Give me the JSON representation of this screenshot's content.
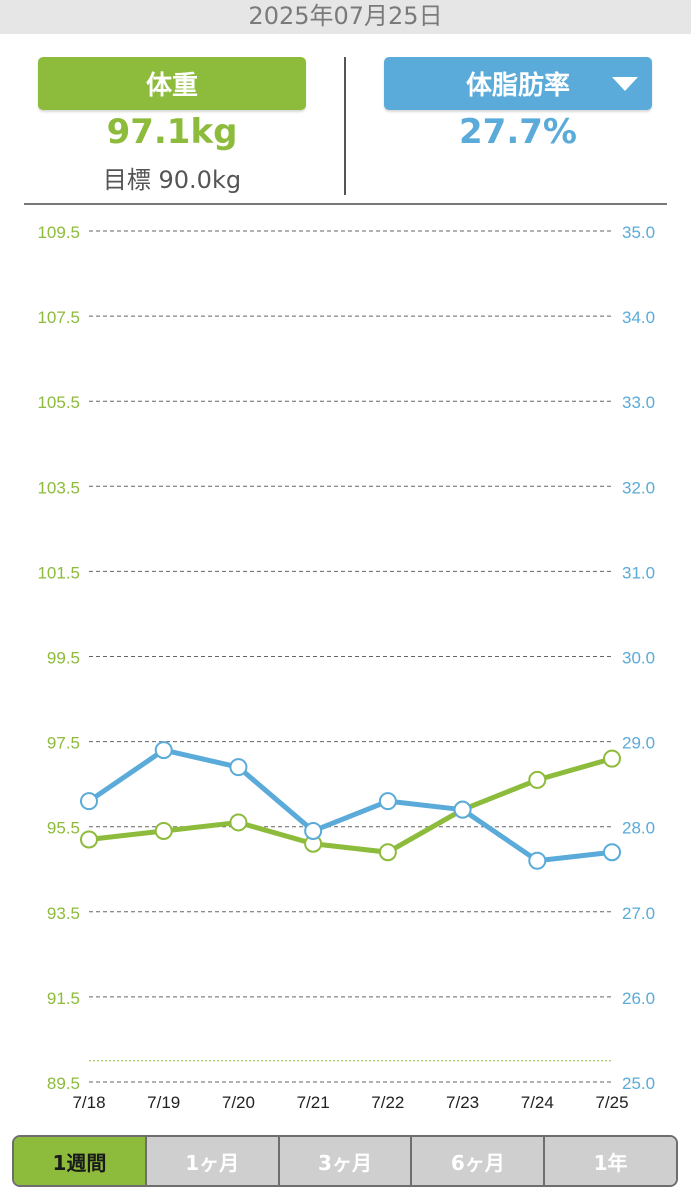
{
  "header": {
    "date": "2025年07月25日"
  },
  "weight": {
    "label": "体重",
    "value": "97.1kg",
    "goal": "目標 90.0kg"
  },
  "body_fat": {
    "label": "体脂肪率",
    "value": "27.7%"
  },
  "tabs": [
    {
      "label": "1週間",
      "active": true
    },
    {
      "label": "1ヶ月",
      "active": false
    },
    {
      "label": "3ヶ月",
      "active": false
    },
    {
      "label": "6ヶ月",
      "active": false
    },
    {
      "label": "1年",
      "active": false
    }
  ],
  "colors": {
    "weight": "#8dbb3b",
    "body_fat": "#5aabd9",
    "grid": "#666666"
  },
  "chart_data": {
    "type": "line",
    "categories": [
      "7/18",
      "7/19",
      "7/20",
      "7/21",
      "7/22",
      "7/23",
      "7/24",
      "7/25"
    ],
    "series": [
      {
        "axis": "left",
        "values": [
          95.2,
          95.4,
          95.6,
          95.1,
          94.9,
          95.9,
          96.6,
          97.1
        ]
      },
      {
        "axis": "right",
        "values": [
          28.3,
          28.9,
          28.7,
          27.95,
          28.3,
          28.2,
          27.6,
          27.7
        ]
      }
    ],
    "y_left": {
      "min": 89.5,
      "max": 109.5,
      "ticks": [
        "109.5",
        "107.5",
        "105.5",
        "103.5",
        "101.5",
        "99.5",
        "97.5",
        "95.5",
        "93.5",
        "91.5",
        "89.5"
      ]
    },
    "y_right": {
      "min": 25.0,
      "max": 35.0,
      "ticks": [
        "35.0",
        "34.0",
        "33.0",
        "32.0",
        "31.0",
        "30.0",
        "29.0",
        "28.0",
        "27.0",
        "26.0",
        "25.0"
      ]
    },
    "goal_line": 90.0,
    "grid": true
  }
}
